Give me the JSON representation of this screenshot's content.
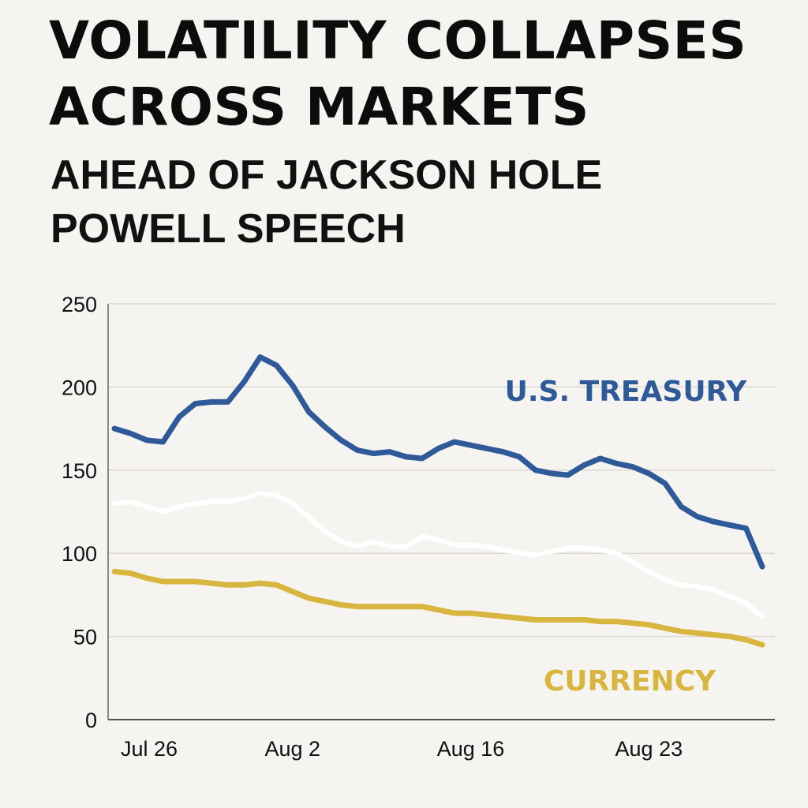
{
  "title": "VOLATILITY COLLAPSES ACROSS MARKETS",
  "subtitle": "AHEAD OF JACKSON HOLE POWELL SPEECH",
  "chart_data": {
    "type": "line",
    "title": "VOLATILITY COLLAPSES ACROSS MARKETS",
    "subtitle": "AHEAD OF JACKSON HOLE POWELL SPEECH",
    "xlabel": "",
    "ylabel": "",
    "ylim": [
      0,
      250
    ],
    "yticks": [
      0,
      50,
      100,
      150,
      200,
      250
    ],
    "xticks": [
      {
        "label": "Jul 26",
        "x": 0
      },
      {
        "label": "Aug 2",
        "x": 11
      },
      {
        "label": "Aug 16",
        "x": 22
      },
      {
        "label": "Aug 23",
        "x": 33
      }
    ],
    "xlim": [
      0,
      40
    ],
    "grid": true,
    "series": [
      {
        "name": "U.S. TREASURY",
        "color": "#2f5a9a",
        "x": [
          0,
          1,
          2,
          3,
          4,
          5,
          6,
          7,
          8,
          9,
          10,
          11,
          12,
          13,
          14,
          15,
          16,
          17,
          18,
          19,
          20,
          21,
          22,
          23,
          24,
          25,
          26,
          27,
          28,
          29,
          30,
          31,
          32,
          33,
          34,
          35,
          36,
          37,
          38,
          39,
          40
        ],
        "values": [
          175,
          172,
          168,
          167,
          182,
          190,
          191,
          191,
          203,
          218,
          213,
          201,
          185,
          176,
          168,
          162,
          160,
          161,
          158,
          157,
          163,
          167,
          165,
          163,
          161,
          158,
          150,
          148,
          147,
          153,
          157,
          154,
          152,
          148,
          142,
          128,
          122,
          119,
          117,
          115,
          92
        ]
      },
      {
        "name": "",
        "color": "#ffffff",
        "x": [
          0,
          1,
          2,
          3,
          4,
          5,
          6,
          7,
          8,
          9,
          10,
          11,
          12,
          13,
          14,
          15,
          16,
          17,
          18,
          19,
          20,
          21,
          22,
          23,
          24,
          25,
          26,
          27,
          28,
          29,
          30,
          31,
          32,
          33,
          34,
          35,
          36,
          37,
          38,
          39,
          40
        ],
        "values": [
          130,
          131,
          128,
          125,
          128,
          130,
          131,
          131,
          133,
          136,
          135,
          130,
          122,
          113,
          107,
          104,
          107,
          104,
          104,
          110,
          108,
          105,
          105,
          104,
          102,
          100,
          99,
          101,
          103,
          103,
          102,
          100,
          95,
          89,
          84,
          81,
          80,
          78,
          74,
          70,
          62
        ]
      },
      {
        "name": "CURRENCY",
        "color": "#d8b53f",
        "x": [
          0,
          1,
          2,
          3,
          4,
          5,
          6,
          7,
          8,
          9,
          10,
          11,
          12,
          13,
          14,
          15,
          16,
          17,
          18,
          19,
          20,
          21,
          22,
          23,
          24,
          25,
          26,
          27,
          28,
          29,
          30,
          31,
          32,
          33,
          34,
          35,
          36,
          37,
          38,
          39,
          40
        ],
        "values": [
          89,
          88,
          85,
          83,
          83,
          83,
          82,
          81,
          81,
          82,
          81,
          77,
          73,
          71,
          69,
          68,
          68,
          68,
          68,
          68,
          66,
          64,
          64,
          63,
          62,
          61,
          60,
          60,
          60,
          60,
          59,
          59,
          58,
          57,
          55,
          53,
          52,
          51,
          50,
          48,
          45
        ]
      }
    ],
    "labels": [
      {
        "text": "U.S. TREASURY",
        "color": "#2f5a9a"
      },
      {
        "text": "CURRENCY",
        "color": "#d8b53f"
      }
    ]
  }
}
